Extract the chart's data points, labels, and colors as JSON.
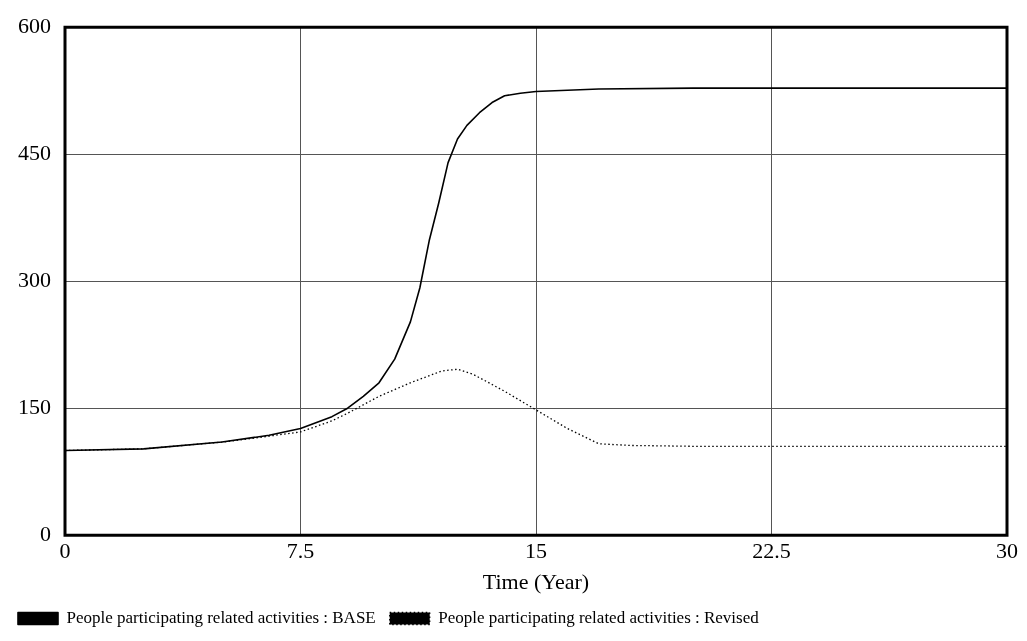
{
  "chart_data": {
    "type": "line",
    "xlabel": "Time (Year)",
    "xlim": [
      0,
      30
    ],
    "xticks": [
      0,
      7.5,
      15,
      22.5,
      30
    ],
    "ylim": [
      0,
      600
    ],
    "yticks": [
      0,
      150,
      300,
      450,
      600
    ],
    "grid": true,
    "legend": "bottom",
    "marker": "none",
    "series": [
      {
        "name": "People participating related activities : BASE",
        "color": "#000000",
        "line_style": "solid",
        "x": [
          0,
          2.5,
          5,
          6.5,
          7.5,
          8.5,
          9,
          9.5,
          10,
          10.5,
          11,
          11.3,
          11.6,
          11.9,
          12.2,
          12.5,
          12.8,
          13.2,
          13.6,
          14,
          14.5,
          15,
          17,
          20,
          25,
          30
        ],
        "values": [
          100,
          102,
          110,
          118,
          126,
          140,
          150,
          164,
          180,
          208,
          252,
          292,
          348,
          392,
          440,
          468,
          484,
          499,
          511,
          519,
          522,
          524,
          527,
          528,
          528,
          528
        ]
      },
      {
        "name": "People participating related activities : Revised",
        "color": "#000000",
        "line_style": "dotted",
        "x": [
          0,
          2.5,
          5,
          6.5,
          7.5,
          8.5,
          9,
          10,
          11,
          12,
          12.5,
          13,
          14,
          15,
          16,
          17,
          18,
          20,
          25,
          30
        ],
        "values": [
          100,
          102,
          110,
          117,
          122,
          135,
          144,
          164,
          180,
          194,
          196,
          190,
          170,
          148,
          126,
          108,
          106,
          105,
          105,
          105
        ]
      }
    ]
  }
}
